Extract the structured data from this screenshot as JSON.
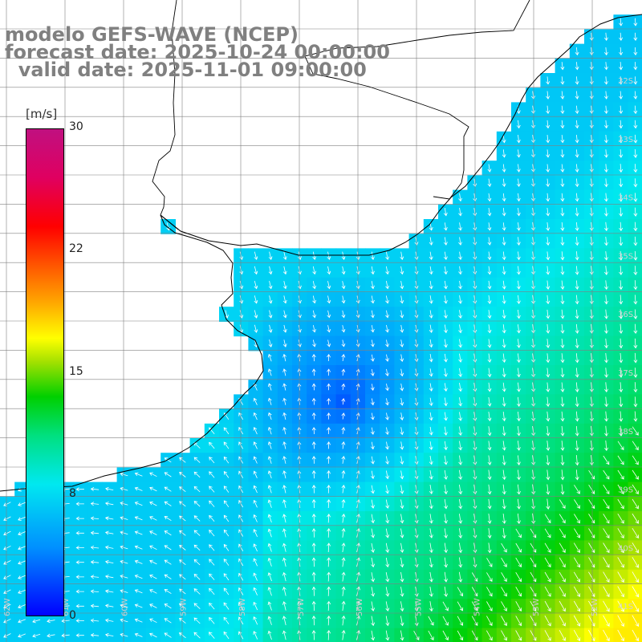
{
  "title": {
    "line1": "modelo GEFS-WAVE (NCEP)",
    "line2": "forecast date: 2025-10-24 00:00:00",
    "line3": "  valid date: 2025-11-01 09:00:00"
  },
  "colorbar": {
    "unit": "[m/s]",
    "ticks": [
      "30",
      "22",
      "15",
      "8",
      "0"
    ],
    "tick_values": [
      30,
      22,
      15,
      8,
      0
    ],
    "range": [
      0,
      30
    ]
  },
  "lat_labels": [
    "32S",
    "33S",
    "34S",
    "35S",
    "36S",
    "37S",
    "38S",
    "39S",
    "40S",
    "41S"
  ],
  "lon_labels": [
    "62W",
    "61W",
    "60W",
    "59W",
    "58W",
    "57W",
    "56W",
    "55W",
    "54W",
    "53W",
    "52W"
  ],
  "colors": {
    "land": "#ffffff",
    "coast": "#000000",
    "grid": "#808080",
    "arrow": "#ffffff",
    "title": "#808080"
  },
  "field": {
    "variable": "wind speed",
    "units": "m/s"
  }
}
